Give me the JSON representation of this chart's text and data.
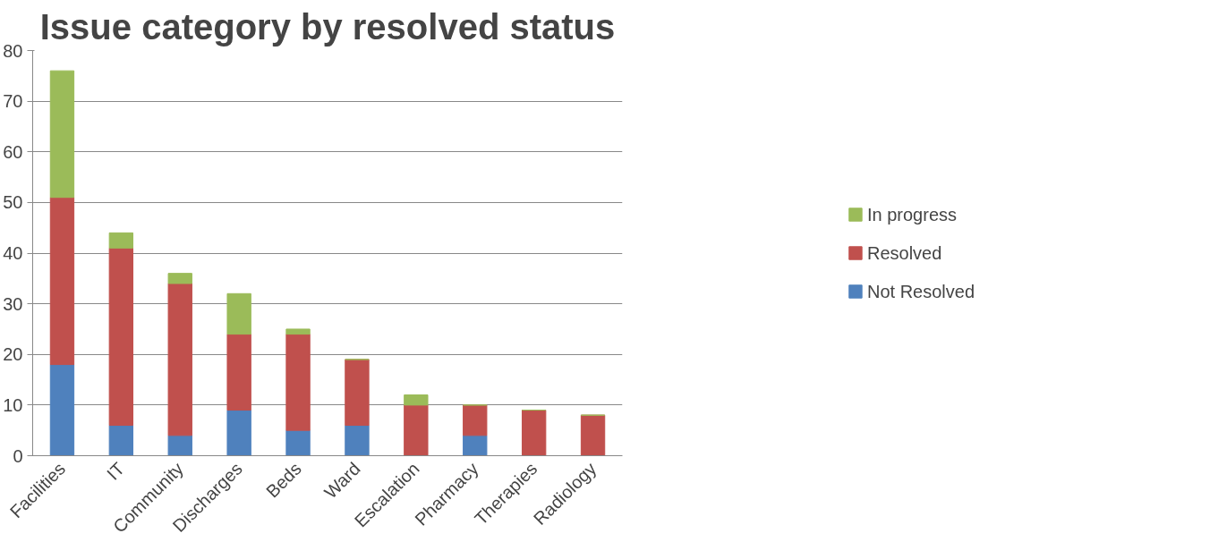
{
  "chart_data": {
    "type": "bar",
    "title": "Issue category by resolved status",
    "categories": [
      "Facilities",
      "IT",
      "Community",
      "Discharges",
      "Beds",
      "Ward",
      "Escalation",
      "Pharmacy",
      "Therapies",
      "Radiology"
    ],
    "stacked": true,
    "series": [
      {
        "name": "Not Resolved",
        "color": "#4f81bd",
        "values": [
          18,
          6,
          4,
          9,
          5,
          6,
          0,
          4,
          0,
          0
        ]
      },
      {
        "name": "Resolved",
        "color": "#c0504d",
        "values": [
          33,
          35,
          30,
          15,
          19,
          13,
          10,
          6,
          9,
          8
        ]
      },
      {
        "name": "In progress",
        "color": "#9bbb59",
        "values": [
          25,
          3,
          2,
          8,
          1,
          0,
          2,
          0,
          0,
          0
        ]
      }
    ],
    "ylim": [
      0,
      80
    ],
    "yticks": [
      0,
      10,
      20,
      30,
      40,
      50,
      60,
      70,
      80
    ],
    "grid": "y",
    "legend": "right"
  }
}
